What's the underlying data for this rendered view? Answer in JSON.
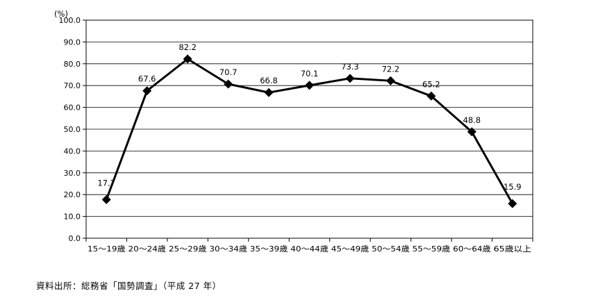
{
  "chart_data": {
    "type": "line",
    "unit_label": "(%)",
    "categories": [
      "15～19歳",
      "20～24歳",
      "25～29歳",
      "30～34歳",
      "35～39歳",
      "40～44歳",
      "45～49歳",
      "50～54歳",
      "55～59歳",
      "60～64歳",
      "65歳以上"
    ],
    "values": [
      17.7,
      67.6,
      82.2,
      70.7,
      66.8,
      70.1,
      73.3,
      72.2,
      65.2,
      48.8,
      15.9
    ],
    "value_labels": [
      "17.7",
      "67.6",
      "82.2",
      "70.7",
      "66.8",
      "70.1",
      "73.3",
      "72.2",
      "65.2",
      "48.8",
      "15.9"
    ],
    "y_ticks": [
      "0.0",
      "10.0",
      "20.0",
      "30.0",
      "40.0",
      "50.0",
      "60.0",
      "70.0",
      "80.0",
      "90.0",
      "100.0"
    ],
    "ylim": [
      0,
      100
    ],
    "grid": true,
    "legend": "none",
    "line_color": "#000000",
    "marker": "diamond"
  },
  "source_note": "資料出所：総務省「国勢調査」（平成 27 年）"
}
